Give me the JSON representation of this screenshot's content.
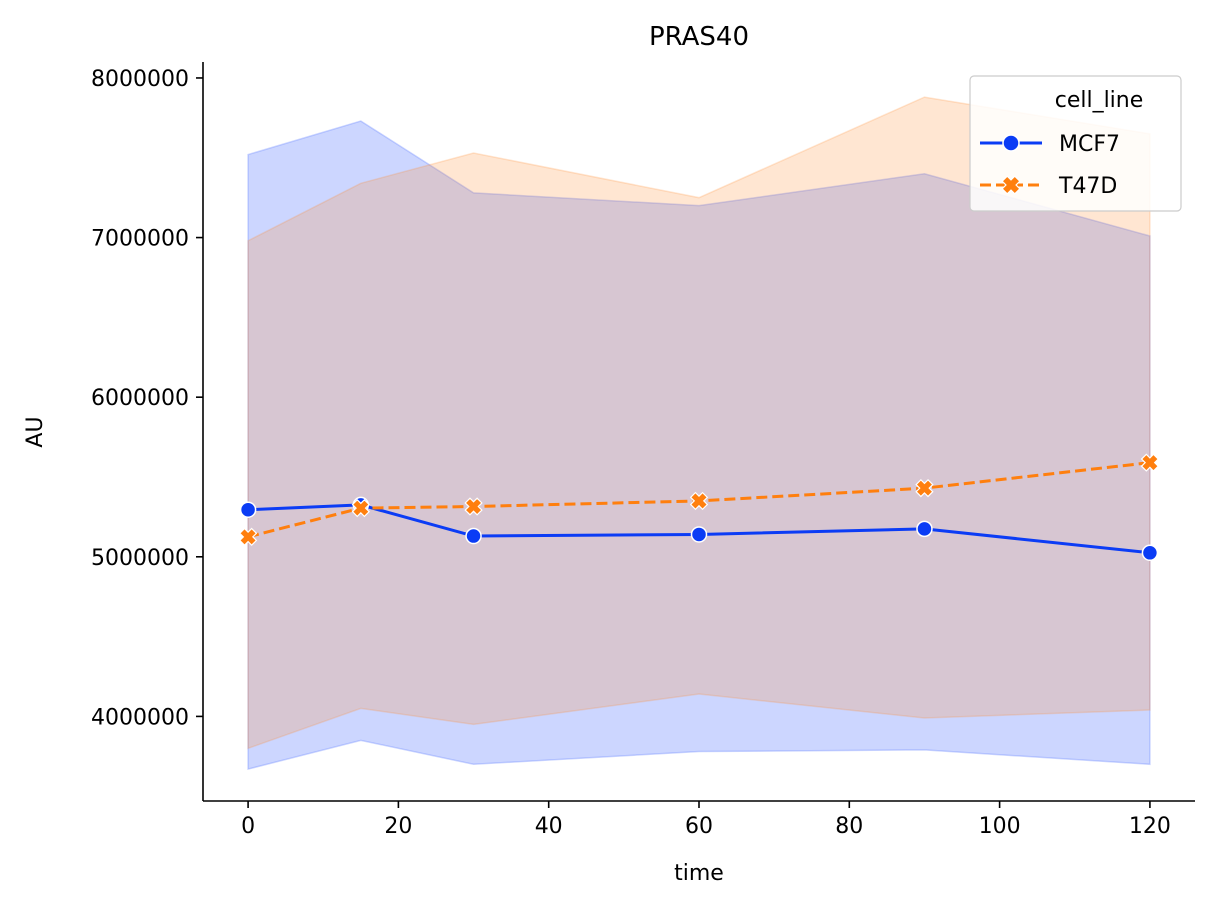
{
  "chart_data": {
    "type": "line",
    "title": "PRAS40",
    "xlabel": "time",
    "ylabel": "AU",
    "xlim": [
      -6,
      126
    ],
    "ylim": [
      3470000,
      8100000
    ],
    "x_ticks": [
      0,
      20,
      40,
      60,
      80,
      100,
      120
    ],
    "y_ticks": [
      4000000,
      5000000,
      6000000,
      7000000,
      8000000
    ],
    "x": [
      0,
      15,
      30,
      60,
      90,
      120
    ],
    "legend": {
      "title": "cell_line",
      "placement": "top-right"
    },
    "series": [
      {
        "name": "MCF7",
        "color": "#0b3cf5",
        "line_style": "solid",
        "marker": "circle",
        "values": [
          5295000,
          5325000,
          5130000,
          5140000,
          5175000,
          5025000
        ],
        "ci_lower": [
          3670000,
          3850000,
          3700000,
          3780000,
          3790000,
          3700000
        ],
        "ci_upper": [
          7520000,
          7730000,
          7280000,
          7200000,
          7400000,
          7010000
        ]
      },
      {
        "name": "T47D",
        "color": "#ff7f0e",
        "line_style": "dashed",
        "marker": "x",
        "values": [
          5125000,
          5305000,
          5315000,
          5350000,
          5430000,
          5590000
        ],
        "ci_lower": [
          3800000,
          4050000,
          3950000,
          4140000,
          3990000,
          4040000
        ],
        "ci_upper": [
          6980000,
          7340000,
          7530000,
          7250000,
          7880000,
          7650000
        ]
      }
    ]
  }
}
